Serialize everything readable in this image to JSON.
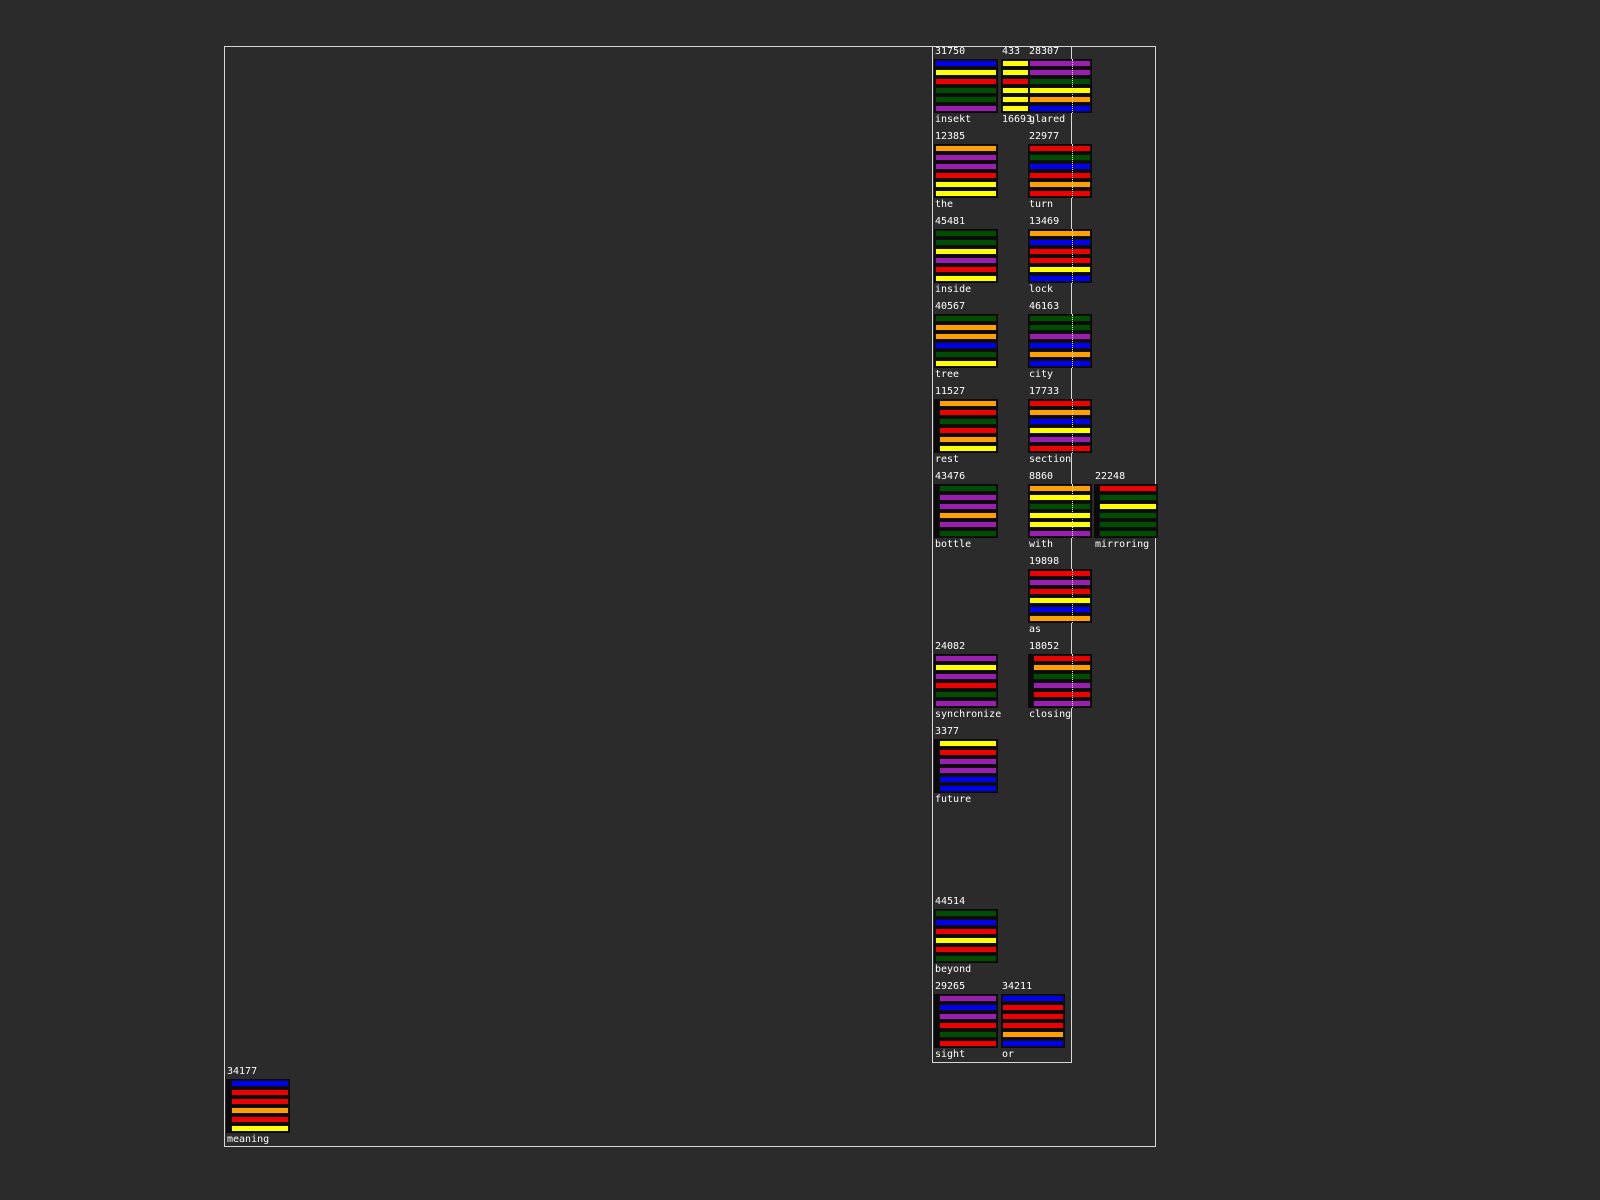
{
  "palette": {
    "blue": "#0000ee",
    "yellow": "#ffff00",
    "red": "#ee0000",
    "green": "#004c00",
    "purple": "#9a1fb0",
    "orange": "#ffa000"
  },
  "cards": [
    {
      "id": "insekt",
      "number": "31750",
      "label": "insekt",
      "bars": [
        "blue",
        "yellow",
        "red",
        "green",
        "green",
        "purple"
      ]
    },
    {
      "id": "c433",
      "number": "433",
      "label": "16693",
      "bars": [
        "yellow",
        "yellow",
        "red",
        "yellow",
        "yellow",
        "yellow"
      ]
    },
    {
      "id": "c28307",
      "number": "28307",
      "label": "glared",
      "bars": [
        "purple",
        "purple",
        "green",
        "yellow",
        "orange",
        "blue"
      ]
    },
    {
      "id": "the",
      "number": "12385",
      "label": "the",
      "bars": [
        "orange",
        "purple",
        "purple",
        "red",
        "yellow",
        "yellow"
      ]
    },
    {
      "id": "turn",
      "number": "22977",
      "label": "turn",
      "bars": [
        "red",
        "green",
        "blue",
        "red",
        "orange",
        "red"
      ]
    },
    {
      "id": "inside",
      "number": "45481",
      "label": "inside",
      "bars": [
        "green",
        "green",
        "yellow",
        "purple",
        "red",
        "yellow"
      ]
    },
    {
      "id": "lock",
      "number": "13469",
      "label": "lock",
      "bars": [
        "orange",
        "blue",
        "red",
        "red",
        "yellow",
        "blue"
      ]
    },
    {
      "id": "tree",
      "number": "40567",
      "label": "tree",
      "bars": [
        "green",
        "orange",
        "orange",
        "blue",
        "green",
        "yellow"
      ]
    },
    {
      "id": "city",
      "number": "46163",
      "label": "city",
      "bars": [
        "green",
        "green",
        "purple",
        "blue",
        "orange",
        "blue"
      ]
    },
    {
      "id": "rest",
      "number": "11527",
      "label": "rest",
      "bars": [
        "orange",
        "red",
        "green",
        "red",
        "orange",
        "yellow"
      ]
    },
    {
      "id": "section",
      "number": "17733",
      "label": "section",
      "bars": [
        "red",
        "orange",
        "blue",
        "yellow",
        "purple",
        "red"
      ]
    },
    {
      "id": "bottle",
      "number": "43476",
      "label": "bottle",
      "bars": [
        "green",
        "purple",
        "purple",
        "orange",
        "purple",
        "green"
      ]
    },
    {
      "id": "with",
      "number": "8860",
      "label": "with",
      "bars": [
        "orange",
        "yellow",
        "green",
        "yellow",
        "yellow",
        "purple"
      ]
    },
    {
      "id": "mirroring",
      "number": "22248",
      "label": "mirroring",
      "bars": [
        "red",
        "green",
        "yellow",
        "green",
        "green",
        "green"
      ]
    },
    {
      "id": "as",
      "number": "19898",
      "label": "as",
      "bars": [
        "red",
        "purple",
        "red",
        "yellow",
        "blue",
        "orange"
      ]
    },
    {
      "id": "synchronize",
      "number": "24082",
      "label": "synchronize",
      "bars": [
        "purple",
        "yellow",
        "purple",
        "red",
        "green",
        "purple"
      ]
    },
    {
      "id": "closing",
      "number": "18052",
      "label": "closing",
      "bars": [
        "red",
        "orange",
        "green",
        "purple",
        "red",
        "purple"
      ]
    },
    {
      "id": "future",
      "number": "3377",
      "label": "future",
      "bars": [
        "yellow",
        "red",
        "purple",
        "purple",
        "blue",
        "blue"
      ]
    },
    {
      "id": "beyond",
      "number": "44514",
      "label": "beyond",
      "bars": [
        "green",
        "blue",
        "red",
        "yellow",
        "red",
        "green"
      ]
    },
    {
      "id": "sight",
      "number": "29265",
      "label": "sight",
      "bars": [
        "purple",
        "blue",
        "purple",
        "red",
        "green",
        "red"
      ]
    },
    {
      "id": "or",
      "number": "34211",
      "label": "or",
      "bars": [
        "blue",
        "red",
        "red",
        "red",
        "orange",
        "blue"
      ]
    },
    {
      "id": "meaning",
      "number": "34177",
      "label": "meaning",
      "bars": [
        "blue",
        "red",
        "red",
        "orange",
        "red",
        "yellow"
      ]
    }
  ]
}
